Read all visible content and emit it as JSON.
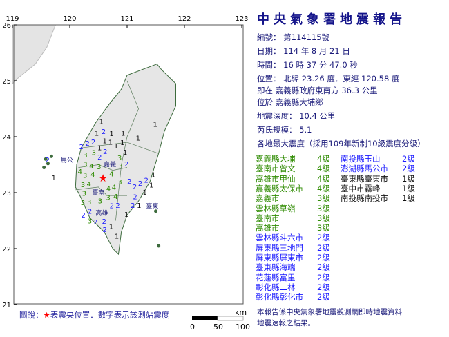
{
  "report": {
    "title": "中央氣象署地震報告",
    "number_label": "編號：",
    "number": "第114115號",
    "date_label": "日期：",
    "date": "114 年 8 月 21 日",
    "time_label": "時間：",
    "time": "16 時 37 分 47.0 秒",
    "location_label": "位置：",
    "location": "北緯 23.26 度．東經 120.58 度",
    "relative_label": "即在",
    "relative": "嘉義縣政府東南方 36.3 公里",
    "town_label": "位於",
    "town": "嘉義縣大埔鄉",
    "depth_label": "地震深度：",
    "depth": "10.4 公里",
    "magnitude_label": "芮氏規模：",
    "magnitude": "5.1",
    "intensity_header": "各地最大震度（採用109年新制10級震度分級）",
    "note_line1": "本報告係中央氣象署地震觀測網即時地震資料",
    "note_line2": "地震速報之結果。"
  },
  "colors": {
    "title": "#14148a",
    "level4": "#2e8b00",
    "level3": "#2e8b00",
    "level2": "#1a1aff",
    "level1": "#111111",
    "epicenter": "#ff0000"
  },
  "intensities_col1": [
    {
      "place": "嘉義縣大埔",
      "level": "4級",
      "n": 4
    },
    {
      "place": "臺南市曾文",
      "level": "4級",
      "n": 4
    },
    {
      "place": "高雄市甲仙",
      "level": "4級",
      "n": 4
    },
    {
      "place": "嘉義縣太保市",
      "level": "4級",
      "n": 4
    },
    {
      "place": "嘉義市",
      "level": "3級",
      "n": 3
    },
    {
      "place": "雲林縣草嶺",
      "level": "3級",
      "n": 3
    },
    {
      "place": "臺南市",
      "level": "3級",
      "n": 3
    },
    {
      "place": "高雄市",
      "level": "3級",
      "n": 3
    },
    {
      "place": "雲林縣斗六市",
      "level": "2級",
      "n": 2
    },
    {
      "place": "屏東縣三地門",
      "level": "2級",
      "n": 2
    },
    {
      "place": "屏東縣屏東市",
      "level": "2級",
      "n": 2
    },
    {
      "place": "臺東縣海端",
      "level": "2級",
      "n": 2
    },
    {
      "place": "花蓮縣富里",
      "level": "2級",
      "n": 2
    },
    {
      "place": "彰化縣二林",
      "level": "2級",
      "n": 2
    },
    {
      "place": "彰化縣彰化市",
      "level": "2級",
      "n": 2
    }
  ],
  "intensities_col2": [
    {
      "place": "南投縣玉山",
      "level": "2級",
      "n": 2
    },
    {
      "place": "澎湖縣馬公市",
      "level": "2級",
      "n": 2
    },
    {
      "place": "臺東縣臺東市",
      "level": "1級",
      "n": 1
    },
    {
      "place": "臺中市霧峰",
      "level": "1級",
      "n": 1
    },
    {
      "place": "南投縣南投市",
      "level": "1級",
      "n": 1
    }
  ],
  "map": {
    "lon_ticks": [
      "119",
      "120",
      "121",
      "122",
      "123"
    ],
    "lat_ticks": [
      "26",
      "25",
      "24",
      "23",
      "22",
      "21"
    ],
    "epicenter": {
      "lon": 120.58,
      "lat": 23.26,
      "icon": "red-star"
    },
    "legend_prefix": "圖說：",
    "legend_star": "★",
    "legend_text": "表震央位置．數字表示該測站震度",
    "scale_unit": "km",
    "scale_ticks": [
      "0",
      "50",
      "100"
    ],
    "cities": [
      {
        "name": "馬公",
        "lon": 119.84,
        "lat": 23.59
      },
      {
        "name": "嘉義",
        "lon": 120.59,
        "lat": 23.52
      },
      {
        "name": "臺南",
        "lon": 120.39,
        "lat": 23.01
      },
      {
        "name": "高雄",
        "lon": 120.45,
        "lat": 22.65
      },
      {
        "name": "臺東",
        "lon": 121.33,
        "lat": 22.77
      }
    ],
    "stations": [
      [
        120.55,
        24.28,
        1
      ],
      [
        120.59,
        24.1,
        2
      ],
      [
        120.47,
        24.07,
        1
      ],
      [
        120.73,
        24.06,
        1
      ],
      [
        120.61,
        23.98,
        1
      ],
      [
        120.71,
        23.93,
        1
      ],
      [
        120.76,
        23.84,
        1
      ],
      [
        120.93,
        24.07,
        1
      ],
      [
        120.92,
        23.9,
        1
      ],
      [
        121.19,
        23.98,
        1
      ],
      [
        121.49,
        24.23,
        1
      ],
      [
        120.41,
        23.94,
        2
      ],
      [
        120.31,
        23.89,
        2
      ],
      [
        120.25,
        23.83,
        2
      ],
      [
        120.52,
        23.81,
        1
      ],
      [
        120.57,
        23.74,
        2
      ],
      [
        120.57,
        23.64,
        2
      ],
      [
        120.27,
        23.68,
        3
      ],
      [
        120.42,
        23.72,
        3
      ],
      [
        120.27,
        23.54,
        3
      ],
      [
        120.33,
        23.48,
        4
      ],
      [
        120.51,
        23.57,
        3
      ],
      [
        120.46,
        23.51,
        3
      ],
      [
        120.63,
        23.44,
        4
      ],
      [
        120.7,
        23.63,
        3
      ],
      [
        120.84,
        23.53,
        3
      ],
      [
        120.99,
        23.52,
        2
      ],
      [
        120.87,
        23.73,
        1
      ],
      [
        120.25,
        23.38,
        4
      ],
      [
        120.45,
        23.38,
        4
      ],
      [
        120.53,
        23.23,
        4
      ],
      [
        120.65,
        23.23,
        4
      ],
      [
        120.23,
        23.2,
        3
      ],
      [
        120.31,
        23.16,
        4
      ],
      [
        120.8,
        23.2,
        3
      ],
      [
        120.63,
        23.11,
        4
      ],
      [
        120.25,
        23.02,
        3
      ],
      [
        120.34,
        23.04,
        3
      ],
      [
        120.67,
        23.02,
        3
      ],
      [
        120.3,
        22.9,
        3
      ],
      [
        120.53,
        22.91,
        3
      ],
      [
        121.04,
        23.21,
        2
      ],
      [
        121.23,
        23.17,
        2
      ],
      [
        121.31,
        23.23,
        2
      ],
      [
        121.23,
        23.11,
        2
      ],
      [
        121.46,
        23.33,
        1
      ],
      [
        121.4,
        23.14,
        1
      ],
      [
        121.31,
        23.01,
        1
      ],
      [
        121.14,
        22.93,
        2
      ],
      [
        121.1,
        22.83,
        2
      ],
      [
        121.16,
        22.78,
        1
      ],
      [
        120.99,
        22.62,
        1
      ],
      [
        120.35,
        22.77,
        2
      ],
      [
        120.54,
        22.77,
        2
      ],
      [
        120.67,
        22.78,
        2
      ],
      [
        120.31,
        22.68,
        2
      ],
      [
        120.35,
        22.65,
        3
      ],
      [
        120.45,
        22.58,
        2
      ],
      [
        120.6,
        22.52,
        2
      ],
      [
        120.49,
        22.47,
        2
      ],
      [
        120.65,
        22.4,
        1
      ],
      [
        120.82,
        22.23,
        1
      ],
      [
        119.61,
        23.59,
        2
      ],
      [
        119.72,
        23.27,
        1
      ]
    ]
  }
}
